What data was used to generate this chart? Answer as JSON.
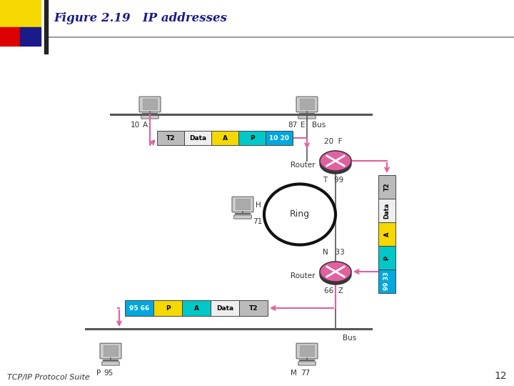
{
  "title": "Figure 2.19   IP addresses",
  "title_fontsize": 12,
  "title_color": "#1a1a8a",
  "subtitle": "TCP/IP Protocol Suite",
  "subtitle_fontsize": 8,
  "page_num": "12",
  "bg_color": "#ffffff",
  "accent_yellow": "#f5d800",
  "accent_red": "#dd0000",
  "accent_blue": "#1a1a8a",
  "arrow_color": "#e060a0",
  "router_color": "#e060a0",
  "packet1_segments": [
    {
      "label": "T2",
      "color": "#bbbbbb",
      "text_color": "#000000"
    },
    {
      "label": "Data",
      "color": "#eeeeee",
      "text_color": "#000000"
    },
    {
      "label": "A",
      "color": "#f5d800",
      "text_color": "#000000"
    },
    {
      "label": "P",
      "color": "#00c8c8",
      "text_color": "#000000"
    },
    {
      "label": "10 20",
      "color": "#00a8e0",
      "text_color": "#ffffff"
    }
  ],
  "packet2_segments": [
    {
      "label": "T2",
      "color": "#bbbbbb",
      "text_color": "#000000"
    },
    {
      "label": "Data",
      "color": "#eeeeee",
      "text_color": "#000000"
    },
    {
      "label": "A",
      "color": "#f5d800",
      "text_color": "#000000"
    },
    {
      "label": "P",
      "color": "#00c8c8",
      "text_color": "#000000"
    },
    {
      "label": "99 33",
      "color": "#00a8e0",
      "text_color": "#ffffff"
    }
  ],
  "packet3_segments": [
    {
      "label": "95 66",
      "color": "#00a8e0",
      "text_color": "#ffffff"
    },
    {
      "label": "P",
      "color": "#f5d800",
      "text_color": "#000000"
    },
    {
      "label": "A",
      "color": "#00c8c8",
      "text_color": "#000000"
    },
    {
      "label": "Data",
      "color": "#eeeeee",
      "text_color": "#000000"
    },
    {
      "label": "T2",
      "color": "#bbbbbb",
      "text_color": "#000000"
    }
  ]
}
